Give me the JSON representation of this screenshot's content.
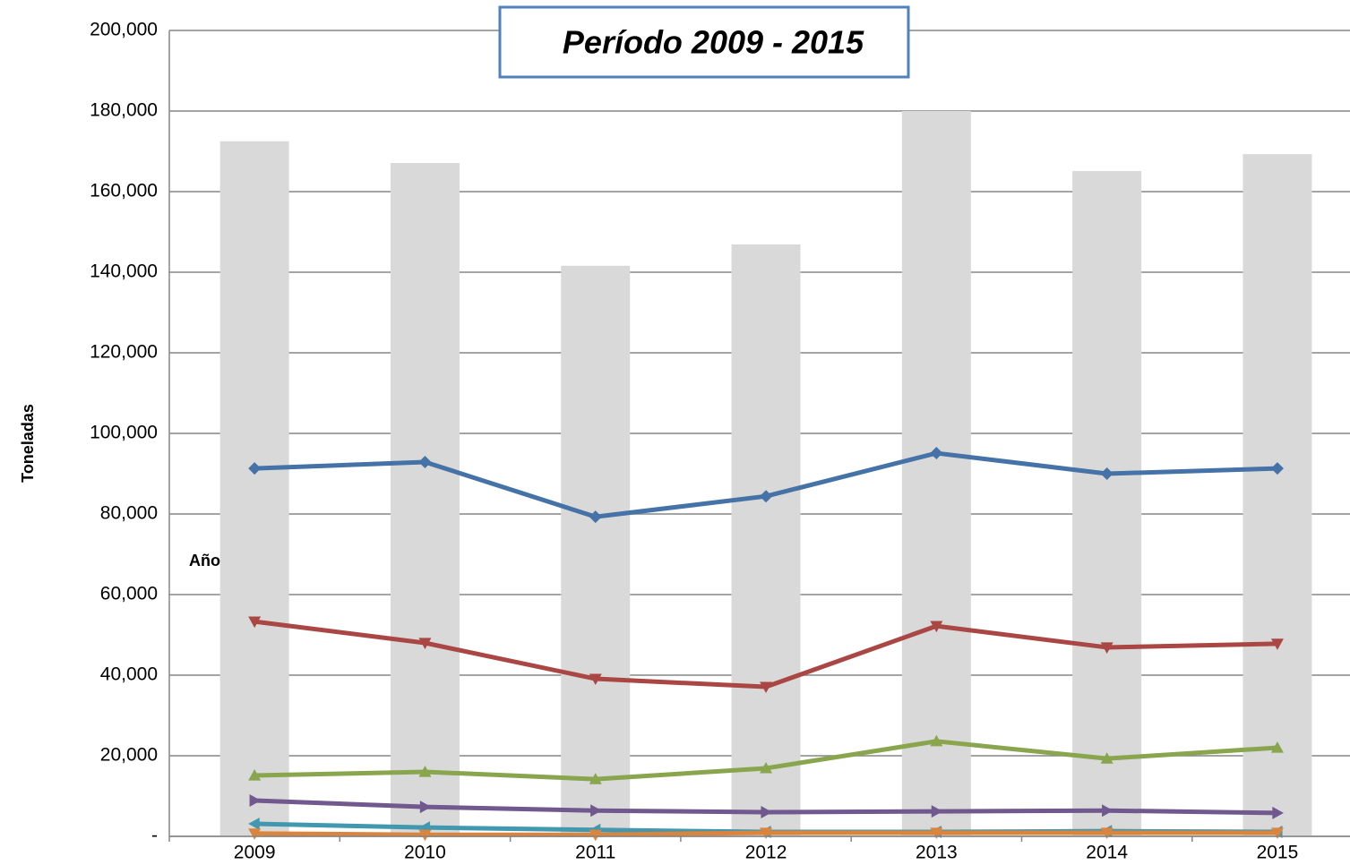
{
  "chart_data": {
    "type": "combo",
    "title": "Período 2009 - 2015",
    "y_label": "Toneladas",
    "annotation": "Año",
    "categories": [
      "2009",
      "2010",
      "2011",
      "2012",
      "2013",
      "2014",
      "2015"
    ],
    "ylim": [
      0,
      200000
    ],
    "yticks": [
      {
        "value": 0,
        "label": "-"
      },
      {
        "value": 20000,
        "label": "20,000"
      },
      {
        "value": 40000,
        "label": "40,000"
      },
      {
        "value": 60000,
        "label": "60,000"
      },
      {
        "value": 80000,
        "label": "80,000"
      },
      {
        "value": 100000,
        "label": "100,000"
      },
      {
        "value": 120000,
        "label": "120,000"
      },
      {
        "value": 140000,
        "label": "140,000"
      },
      {
        "value": 160000,
        "label": "160,000"
      },
      {
        "value": 180000,
        "label": "180,000"
      },
      {
        "value": 200000,
        "label": "200,000"
      }
    ],
    "grid": true,
    "series": [
      {
        "type": "bar",
        "color": "#d9d9d9",
        "values": [
          172500,
          167100,
          141600,
          146900,
          180000,
          165100,
          169300
        ]
      },
      {
        "type": "line",
        "marker": "diamond",
        "color": "#4572a7",
        "values": [
          91300,
          92900,
          79300,
          84400,
          95100,
          90000,
          91300
        ]
      },
      {
        "type": "line",
        "marker": "triangle-down",
        "color": "#aa4643",
        "values": [
          53300,
          48000,
          39100,
          37100,
          52200,
          46900,
          47800
        ]
      },
      {
        "type": "line",
        "marker": "triangle-up",
        "color": "#89a54e",
        "values": [
          15100,
          16000,
          14200,
          16900,
          23600,
          19300,
          22000
        ]
      },
      {
        "type": "line",
        "marker": "triangle-right",
        "color": "#71588f",
        "values": [
          8900,
          7300,
          6400,
          6000,
          6200,
          6400,
          5800
        ]
      },
      {
        "type": "line",
        "marker": "triangle-left",
        "color": "#4198af",
        "values": [
          3100,
          2200,
          1600,
          1100,
          1100,
          1300,
          1100
        ]
      },
      {
        "type": "line",
        "marker": "triangle-down",
        "color": "#db843d",
        "values": [
          700,
          400,
          400,
          900,
          900,
          900,
          900
        ]
      }
    ]
  }
}
